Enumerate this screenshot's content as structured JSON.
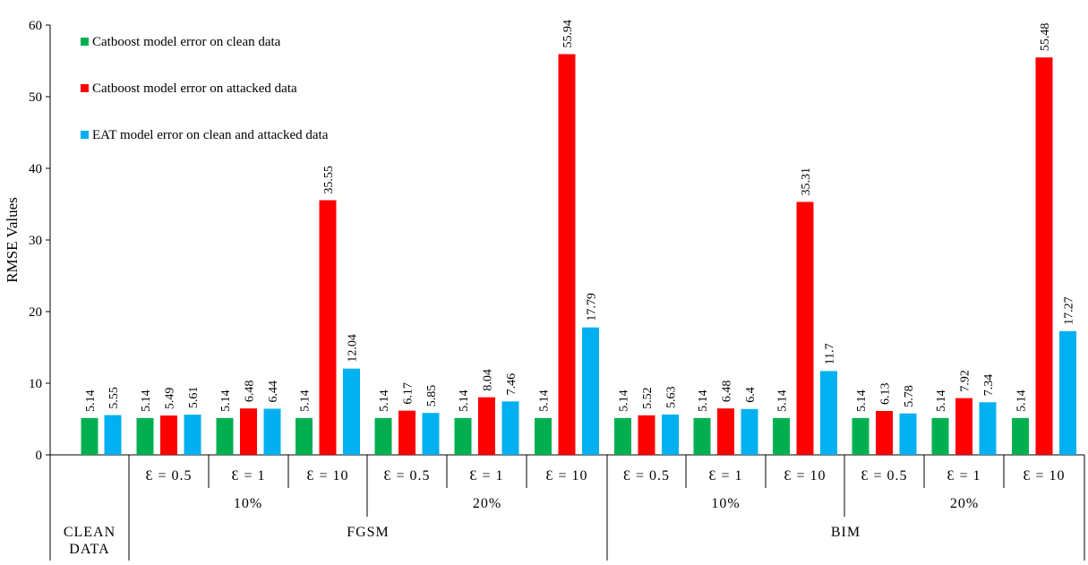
{
  "chart_data": {
    "type": "bar",
    "ylabel": "RMSE Values",
    "ylim": [
      0,
      60
    ],
    "yticks": [
      0,
      10,
      20,
      30,
      40,
      50,
      60
    ],
    "grid": false,
    "legend_position": "top-left",
    "series": [
      {
        "name": "Catboost model error on clean data",
        "color": "#00b050"
      },
      {
        "name": "Catboost model error on attacked data",
        "color": "#ff0000"
      },
      {
        "name": "EAT model error on clean and attacked data",
        "color": "#00b0f0"
      }
    ],
    "groups": [
      {
        "epsilon": "",
        "values": [
          5.14,
          null,
          5.55
        ],
        "labels": [
          "5.14",
          "",
          "5.55"
        ]
      },
      {
        "epsilon": "Ɛ = 0.5",
        "values": [
          5.14,
          5.49,
          5.61
        ],
        "labels": [
          "5.14",
          "5.49",
          "5.61"
        ]
      },
      {
        "epsilon": "Ɛ = 1",
        "values": [
          5.14,
          6.48,
          6.44
        ],
        "labels": [
          "5.14",
          "6.48",
          "6.44"
        ]
      },
      {
        "epsilon": "Ɛ = 10",
        "values": [
          5.14,
          35.55,
          12.04
        ],
        "labels": [
          "5.14",
          "35.55",
          "12.04"
        ]
      },
      {
        "epsilon": "Ɛ = 0.5",
        "values": [
          5.14,
          6.17,
          5.85
        ],
        "labels": [
          "5.14",
          "6.17",
          "5.85"
        ]
      },
      {
        "epsilon": "Ɛ = 1",
        "values": [
          5.14,
          8.04,
          7.46
        ],
        "labels": [
          "5.14",
          "8.04",
          "7.46"
        ]
      },
      {
        "epsilon": "Ɛ = 10",
        "values": [
          5.14,
          55.94,
          17.79
        ],
        "labels": [
          "5.14",
          "55.94",
          "17.79"
        ]
      },
      {
        "epsilon": "Ɛ = 0.5",
        "values": [
          5.14,
          5.52,
          5.63
        ],
        "labels": [
          "5.14",
          "5.52",
          "5.63"
        ]
      },
      {
        "epsilon": "Ɛ = 1",
        "values": [
          5.14,
          6.48,
          6.4
        ],
        "labels": [
          "5.14",
          "6.48",
          "6.4"
        ]
      },
      {
        "epsilon": "Ɛ = 10",
        "values": [
          5.14,
          35.31,
          11.7
        ],
        "labels": [
          "5.14",
          "35.31",
          "11.7"
        ]
      },
      {
        "epsilon": "Ɛ = 0.5",
        "values": [
          5.14,
          6.13,
          5.78
        ],
        "labels": [
          "5.14",
          "6.13",
          "5.78"
        ]
      },
      {
        "epsilon": "Ɛ = 1",
        "values": [
          5.14,
          7.92,
          7.34
        ],
        "labels": [
          "5.14",
          "7.92",
          "7.34"
        ]
      },
      {
        "epsilon": "Ɛ = 10",
        "values": [
          5.14,
          55.48,
          17.27
        ],
        "labels": [
          "5.14",
          "55.48",
          "17.27"
        ]
      }
    ],
    "percent_labels": [
      {
        "label": "10%",
        "start": 1,
        "end": 3
      },
      {
        "label": "20%",
        "start": 4,
        "end": 6
      },
      {
        "label": "10%",
        "start": 7,
        "end": 9
      },
      {
        "label": "20%",
        "start": 10,
        "end": 12
      }
    ],
    "attack_labels": [
      {
        "label": "FGSM",
        "start": 1,
        "end": 6
      },
      {
        "label": "BIM",
        "start": 7,
        "end": 12
      }
    ],
    "clean_label": [
      "CLEAN",
      "DATA"
    ]
  }
}
